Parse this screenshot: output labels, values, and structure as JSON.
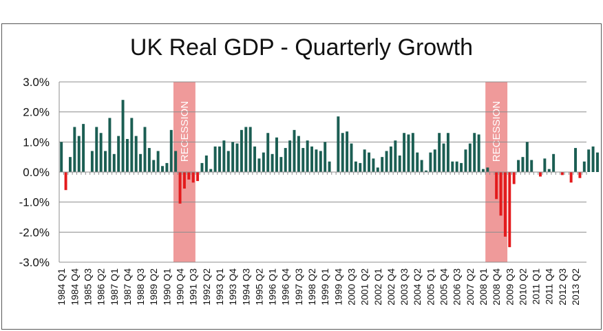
{
  "chart_data": {
    "type": "bar",
    "title": "UK Real GDP - Quarterly Growth",
    "xlabel": "",
    "ylabel": "",
    "ylim": [
      -3.0,
      3.0
    ],
    "y_ticks": [
      3.0,
      2.0,
      1.0,
      0.0,
      -1.0,
      -2.0,
      -3.0
    ],
    "y_tick_labels": [
      "3.0%",
      "2.0%",
      "1.0%",
      "0.0%",
      "-1.0%",
      "-2.0%",
      "-3.0%"
    ],
    "x_tick_labels": [
      "1984 Q1",
      "1984 Q4",
      "1985 Q3",
      "1986 Q2",
      "1987 Q1",
      "1987 Q4",
      "1988 Q3",
      "1989 Q2",
      "1990 Q1",
      "1990 Q4",
      "1991 Q3",
      "1992 Q2",
      "1993 Q1",
      "1993 Q4",
      "1994 Q3",
      "1995 Q2",
      "1996 Q1",
      "1996 Q4",
      "1997 Q3",
      "1998 Q2",
      "1999 Q1",
      "1999 Q4",
      "2000 Q3",
      "2001 Q2",
      "2002 Q1",
      "2002 Q4",
      "2003 Q3",
      "2004 Q2",
      "2005 Q1",
      "2005 Q4",
      "2006 Q3",
      "2007 Q2",
      "2008 Q1",
      "2008 Q4",
      "2009 Q3",
      "2010 Q2",
      "2011 Q1",
      "2011 Q4",
      "2012 Q3",
      "2013 Q2"
    ],
    "first_quarter": "1984 Q1",
    "last_quarter": "2013 Q4",
    "tick_every_n_quarters": 3,
    "values": [
      1.0,
      -0.6,
      0.5,
      1.5,
      1.2,
      1.6,
      0.0,
      0.7,
      1.5,
      1.3,
      0.7,
      1.8,
      0.6,
      1.2,
      2.4,
      1.1,
      1.8,
      1.2,
      0.6,
      1.5,
      0.8,
      0.4,
      0.7,
      0.2,
      0.3,
      1.4,
      0.7,
      -1.05,
      -0.55,
      -0.25,
      -0.35,
      -0.3,
      0.3,
      0.55,
      0.1,
      0.85,
      0.85,
      1.05,
      0.7,
      1.0,
      0.95,
      1.4,
      1.5,
      1.5,
      0.85,
      0.45,
      0.65,
      1.3,
      0.6,
      1.15,
      0.5,
      0.8,
      1.05,
      1.4,
      1.2,
      0.8,
      1.05,
      0.85,
      0.75,
      0.7,
      1.0,
      0.35,
      0.0,
      1.85,
      1.3,
      1.35,
      0.95,
      0.35,
      0.3,
      0.75,
      0.65,
      0.45,
      0.15,
      0.5,
      0.7,
      0.85,
      1.05,
      0.55,
      1.3,
      1.25,
      1.3,
      0.65,
      0.4,
      0.05,
      0.65,
      0.75,
      1.3,
      0.95,
      1.3,
      0.35,
      0.35,
      0.3,
      0.75,
      0.95,
      1.3,
      1.25,
      0.1,
      0.15,
      0.0,
      -0.9,
      -1.45,
      -2.15,
      -2.5,
      -0.4,
      0.4,
      0.5,
      1.0,
      0.4,
      0.0,
      -0.15,
      0.45,
      0.1,
      0.6,
      0.0,
      -0.1,
      0.0,
      -0.35,
      0.8,
      -0.2,
      0.35,
      0.75,
      0.85,
      0.65
    ],
    "positive_color": "#1b5e53",
    "negative_color": "#e31a1c",
    "annotations": [
      {
        "label": "RECESSION",
        "from_quarter": "1990 Q3",
        "to_quarter": "1991 Q3"
      },
      {
        "label": "RECESSION",
        "from_quarter": "2008 Q2",
        "to_quarter": "2009 Q2"
      }
    ],
    "recession_color": "#ef9a9a",
    "grid": true,
    "legend": "none"
  }
}
